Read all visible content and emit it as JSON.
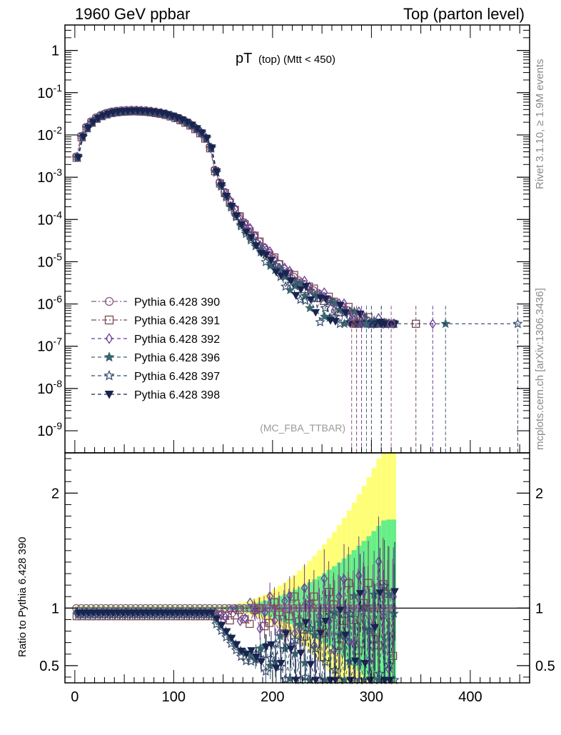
{
  "header": {
    "left_title": "1960 GeV ppbar",
    "right_title": "Top (parton level)"
  },
  "side_labels": {
    "rivet": "Rivet 3.1.10, ≥ 1.9M events",
    "mcplots": "mcplots.cern.ch [arXiv:1306.3436]"
  },
  "chart_data": [
    {
      "type": "scatter",
      "title": "pT (top) (Mtt < 450)",
      "title_main": "pT",
      "title_sub": "(top) (Mtt < 450)",
      "watermark": "(MC_FBA_TTBAR)",
      "xlim": [
        -10,
        460
      ],
      "ylim": [
        3e-10,
        4
      ],
      "yscale": "log",
      "yticks": [
        "1",
        "10^-1",
        "10^-2",
        "10^-3",
        "10^-4",
        "10^-5",
        "10^-6",
        "10^-7",
        "10^-8",
        "10^-9"
      ],
      "legend_position": "middle-left",
      "series": [
        {
          "name": "Pythia 6.428 390",
          "color": "#8a5a8a",
          "marker": "circle-open",
          "dash": "7,3,2,3"
        },
        {
          "name": "Pythia 6.428 391",
          "color": "#7a4a55",
          "marker": "square-open",
          "dash": "7,3,2,3"
        },
        {
          "name": "Pythia 6.428 392",
          "color": "#6a3d9a",
          "marker": "diamond-open",
          "dash": "5,4"
        },
        {
          "name": "Pythia 6.428 396",
          "color": "#3a6670",
          "marker": "star-filled",
          "dash": "5,4"
        },
        {
          "name": "Pythia 6.428 397",
          "color": "#344a6a",
          "marker": "star-open",
          "dash": "5,4"
        },
        {
          "name": "Pythia 6.428 398",
          "color": "#1a2450",
          "marker": "triangle-down-filled",
          "dash": "5,4"
        }
      ],
      "x": [
        2.5,
        7.5,
        12.5,
        17.5,
        22.5,
        27.5,
        32.5,
        37.5,
        42.5,
        47.5,
        52.5,
        57.5,
        62.5,
        67.5,
        72.5,
        77.5,
        82.5,
        87.5,
        92.5,
        97.5,
        102.5,
        107.5,
        112.5,
        117.5,
        122.5,
        127.5,
        132.5,
        137.5,
        142.5,
        147.5,
        152.5,
        157.5,
        162.5,
        167.5,
        172.5,
        177.5,
        182.5,
        187.5,
        192.5,
        197.5,
        202.5,
        207.5,
        212.5,
        217.5,
        222.5,
        227.5,
        232.5,
        237.5,
        242.5,
        247.5,
        252.5,
        257.5,
        262.5,
        267.5,
        272.5,
        277.5,
        282.5,
        287.5,
        292.5,
        297.5,
        302.5,
        307.5,
        312.5,
        317.5,
        322.5
      ],
      "y_reference": [
        0.0031,
        0.0095,
        0.0155,
        0.021,
        0.026,
        0.03,
        0.033,
        0.0355,
        0.037,
        0.038,
        0.0385,
        0.039,
        0.039,
        0.0385,
        0.038,
        0.037,
        0.0355,
        0.034,
        0.032,
        0.0295,
        0.027,
        0.024,
        0.021,
        0.018,
        0.0148,
        0.0118,
        0.0088,
        0.0052,
        0.0015,
        0.00075,
        0.00045,
        0.00028,
        0.00018,
        0.00012,
        8.5e-05,
        6e-05,
        4.2e-05,
        3e-05,
        2.2e-05,
        1.6e-05,
        1.2e-05,
        9e-06,
        6.8e-06,
        5.5e-06,
        4.4e-06,
        3.6e-06,
        3e-06,
        2.5e-06,
        2.1e-06,
        1.8e-06,
        1.5e-06,
        1.3e-06,
        1.1e-06,
        9.5e-07,
        8.2e-07,
        7e-07,
        6e-07,
        5.2e-07,
        4.5e-07,
        4e-07,
        3.6e-07,
        3.3e-07,
        3e-07,
        2.8e-07,
        2.6e-07
      ],
      "ratio": {
        "ylabel": "Ratio to Pythia 6.428 390",
        "ylim": [
          0.35,
          2.35
        ],
        "yticks": [
          0.5,
          1,
          2
        ],
        "xticks": [
          0,
          100,
          200,
          300,
          400
        ]
      }
    }
  ]
}
